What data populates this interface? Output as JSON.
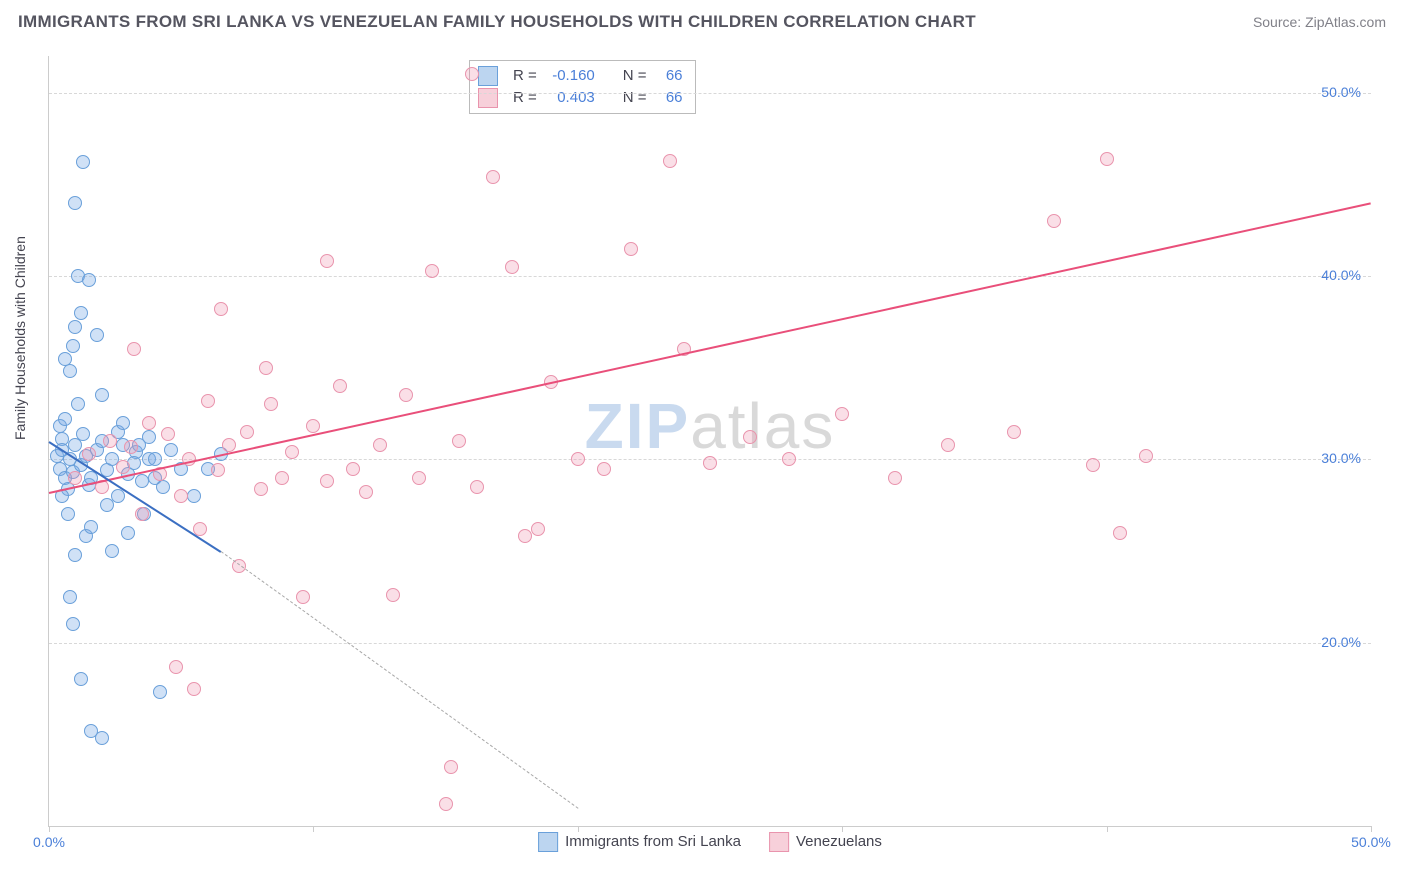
{
  "title": "IMMIGRANTS FROM SRI LANKA VS VENEZUELAN FAMILY HOUSEHOLDS WITH CHILDREN CORRELATION CHART",
  "source": "Source: ZipAtlas.com",
  "ylabel": "Family Households with Children",
  "watermark_zip": "ZIP",
  "watermark_atlas": "atlas",
  "chart": {
    "type": "scatter",
    "xlim": [
      0,
      50
    ],
    "ylim": [
      10,
      52
    ],
    "yticks": [
      {
        "v": 20,
        "label": "20.0%"
      },
      {
        "v": 30,
        "label": "30.0%"
      },
      {
        "v": 40,
        "label": "40.0%"
      },
      {
        "v": 50,
        "label": "50.0%"
      }
    ],
    "xticks_major": [
      0,
      10,
      20,
      30,
      40,
      50
    ],
    "xtick_labels": [
      {
        "v": 0,
        "label": "0.0%"
      },
      {
        "v": 50,
        "label": "50.0%"
      }
    ],
    "grid_color": "#d8d8d8",
    "background_color": "#ffffff",
    "series": [
      {
        "name": "Immigrants from Sri Lanka",
        "color_fill": "rgba(120,170,230,0.35)",
        "color_stroke": "#6aa0da",
        "swatch_fill": "#bcd5f0",
        "swatch_stroke": "#6aa0da",
        "r": -0.16,
        "n": 66,
        "trend": {
          "x1": 0,
          "y1": 31.0,
          "x2": 6.5,
          "y2": 25.0,
          "color": "#3b6fc2",
          "width": 2
        },
        "trend_ext": {
          "x1": 6.5,
          "y1": 25.0,
          "x2": 20.0,
          "y2": 11.0,
          "color": "#a8a8a8"
        },
        "points": [
          [
            0.3,
            30.2
          ],
          [
            0.4,
            29.5
          ],
          [
            0.5,
            31.1
          ],
          [
            0.6,
            29.0
          ],
          [
            0.5,
            30.5
          ],
          [
            0.7,
            28.4
          ],
          [
            0.4,
            31.8
          ],
          [
            0.8,
            30.0
          ],
          [
            0.6,
            32.2
          ],
          [
            0.9,
            29.3
          ],
          [
            0.5,
            28.0
          ],
          [
            1.0,
            30.8
          ],
          [
            0.7,
            27.0
          ],
          [
            1.2,
            29.7
          ],
          [
            0.8,
            34.8
          ],
          [
            1.4,
            30.2
          ],
          [
            0.6,
            35.5
          ],
          [
            1.1,
            33.0
          ],
          [
            0.9,
            36.2
          ],
          [
            1.3,
            31.4
          ],
          [
            1.5,
            28.6
          ],
          [
            1.0,
            37.2
          ],
          [
            1.6,
            29.0
          ],
          [
            1.2,
            38.0
          ],
          [
            1.8,
            30.5
          ],
          [
            1.4,
            25.8
          ],
          [
            2.0,
            31.0
          ],
          [
            1.1,
            40.0
          ],
          [
            2.2,
            29.4
          ],
          [
            1.6,
            26.3
          ],
          [
            2.4,
            30.0
          ],
          [
            1.3,
            46.2
          ],
          [
            1.0,
            44.0
          ],
          [
            2.6,
            28.0
          ],
          [
            1.5,
            39.8
          ],
          [
            2.8,
            30.8
          ],
          [
            1.8,
            36.8
          ],
          [
            3.0,
            29.2
          ],
          [
            2.0,
            33.5
          ],
          [
            3.3,
            30.4
          ],
          [
            2.2,
            27.5
          ],
          [
            3.5,
            28.8
          ],
          [
            0.8,
            22.5
          ],
          [
            2.4,
            25.0
          ],
          [
            3.8,
            30.0
          ],
          [
            1.2,
            18.0
          ],
          [
            2.6,
            31.5
          ],
          [
            4.0,
            29.0
          ],
          [
            1.6,
            15.2
          ],
          [
            2.8,
            32.0
          ],
          [
            4.3,
            28.5
          ],
          [
            3.0,
            26.0
          ],
          [
            2.0,
            14.8
          ],
          [
            3.2,
            29.8
          ],
          [
            4.6,
            30.5
          ],
          [
            0.9,
            21.0
          ],
          [
            3.4,
            30.8
          ],
          [
            1.0,
            24.8
          ],
          [
            3.6,
            27.0
          ],
          [
            5.0,
            29.5
          ],
          [
            3.8,
            31.2
          ],
          [
            4.2,
            17.3
          ],
          [
            5.5,
            28.0
          ],
          [
            4.0,
            30.0
          ],
          [
            6.0,
            29.5
          ],
          [
            6.5,
            30.3
          ]
        ]
      },
      {
        "name": "Venezuelans",
        "color_fill": "rgba(240,150,175,0.30)",
        "color_stroke": "#e994ad",
        "swatch_fill": "#f7d0da",
        "swatch_stroke": "#e994ad",
        "r": 0.403,
        "n": 66,
        "trend": {
          "x1": 0,
          "y1": 28.2,
          "x2": 50,
          "y2": 44.0,
          "color": "#e94f7a",
          "width": 2
        },
        "points": [
          [
            1.0,
            29.0
          ],
          [
            1.5,
            30.3
          ],
          [
            2.0,
            28.5
          ],
          [
            2.3,
            31.0
          ],
          [
            2.8,
            29.6
          ],
          [
            3.1,
            30.7
          ],
          [
            3.5,
            27.0
          ],
          [
            3.8,
            32.0
          ],
          [
            4.2,
            29.2
          ],
          [
            4.5,
            31.4
          ],
          [
            5.0,
            28.0
          ],
          [
            5.3,
            30.0
          ],
          [
            5.7,
            26.2
          ],
          [
            6.0,
            33.2
          ],
          [
            6.4,
            29.4
          ],
          [
            6.8,
            30.8
          ],
          [
            7.2,
            24.2
          ],
          [
            7.5,
            31.5
          ],
          [
            8.0,
            28.4
          ],
          [
            8.4,
            33.0
          ],
          [
            8.8,
            29.0
          ],
          [
            9.2,
            30.4
          ],
          [
            9.6,
            22.5
          ],
          [
            10.0,
            31.8
          ],
          [
            10.5,
            28.8
          ],
          [
            5.5,
            17.5
          ],
          [
            4.8,
            18.7
          ],
          [
            11.0,
            34.0
          ],
          [
            11.5,
            29.5
          ],
          [
            6.5,
            38.2
          ],
          [
            12.0,
            28.2
          ],
          [
            3.2,
            36.0
          ],
          [
            12.5,
            30.8
          ],
          [
            13.0,
            22.6
          ],
          [
            13.5,
            33.5
          ],
          [
            14.0,
            29.0
          ],
          [
            14.5,
            40.3
          ],
          [
            15.0,
            11.2
          ],
          [
            15.2,
            13.2
          ],
          [
            15.5,
            31.0
          ],
          [
            16.0,
            51.0
          ],
          [
            16.2,
            28.5
          ],
          [
            16.8,
            45.4
          ],
          [
            17.5,
            40.5
          ],
          [
            18.0,
            25.8
          ],
          [
            18.5,
            26.2
          ],
          [
            19.0,
            34.2
          ],
          [
            20.0,
            30.0
          ],
          [
            21.0,
            29.5
          ],
          [
            22.0,
            41.5
          ],
          [
            23.5,
            46.3
          ],
          [
            24.0,
            36.0
          ],
          [
            25.0,
            29.8
          ],
          [
            26.5,
            31.2
          ],
          [
            28.0,
            30.0
          ],
          [
            30.0,
            32.5
          ],
          [
            32.0,
            29.0
          ],
          [
            34.0,
            30.8
          ],
          [
            36.5,
            31.5
          ],
          [
            38.0,
            43.0
          ],
          [
            39.5,
            29.7
          ],
          [
            40.0,
            46.4
          ],
          [
            40.5,
            26.0
          ],
          [
            41.5,
            30.2
          ],
          [
            10.5,
            40.8
          ],
          [
            8.2,
            35.0
          ]
        ]
      }
    ]
  },
  "legend_bottom": {
    "s1_label": "Immigrants from Sri Lanka",
    "s2_label": "Venezuelans"
  },
  "stat_box": {
    "r_label": "R  =",
    "n_label": "N  =",
    "r1": "-0.160",
    "n1": "66",
    "r2": "0.403",
    "n2": "66"
  }
}
